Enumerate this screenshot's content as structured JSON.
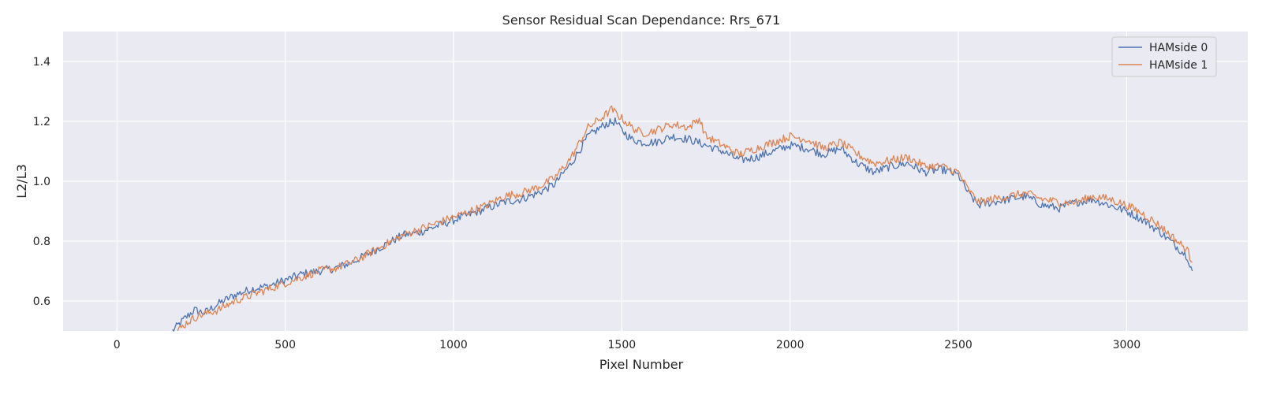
{
  "chart_data": {
    "type": "line",
    "title": "Sensor Residual Scan Dependance: Rrs_671",
    "xlabel": "Pixel Number",
    "ylabel": "L2/L3",
    "xlim": [
      -160,
      3360
    ],
    "ylim": [
      0.5,
      1.5
    ],
    "xticks": [
      0,
      500,
      1000,
      1500,
      2000,
      2500,
      3000
    ],
    "yticks": [
      0.6,
      0.8,
      1.0,
      1.2,
      1.4
    ],
    "grid": true,
    "legend_position": "top-right",
    "background": "#eaeaf2",
    "series": [
      {
        "name": "HAMside 0",
        "color": "#4c72b0",
        "x": [
          165,
          200,
          230,
          260,
          300,
          350,
          400,
          450,
          500,
          550,
          600,
          650,
          700,
          750,
          800,
          850,
          900,
          950,
          1000,
          1050,
          1100,
          1150,
          1200,
          1250,
          1300,
          1350,
          1400,
          1450,
          1480,
          1500,
          1530,
          1560,
          1600,
          1650,
          1700,
          1750,
          1800,
          1850,
          1900,
          1950,
          2000,
          2050,
          2100,
          2150,
          2200,
          2250,
          2300,
          2350,
          2400,
          2450,
          2500,
          2530,
          2560,
          2600,
          2650,
          2700,
          2750,
          2800,
          2850,
          2900,
          2950,
          3000,
          3050,
          3100,
          3150,
          3180,
          3195
        ],
        "y": [
          0.5,
          0.54,
          0.57,
          0.56,
          0.59,
          0.62,
          0.64,
          0.65,
          0.67,
          0.69,
          0.7,
          0.71,
          0.73,
          0.76,
          0.79,
          0.82,
          0.83,
          0.85,
          0.87,
          0.89,
          0.91,
          0.93,
          0.94,
          0.96,
          0.99,
          1.06,
          1.15,
          1.19,
          1.2,
          1.17,
          1.14,
          1.13,
          1.13,
          1.15,
          1.14,
          1.12,
          1.1,
          1.07,
          1.08,
          1.1,
          1.12,
          1.11,
          1.09,
          1.11,
          1.06,
          1.03,
          1.05,
          1.06,
          1.03,
          1.04,
          1.02,
          0.96,
          0.92,
          0.93,
          0.94,
          0.95,
          0.92,
          0.91,
          0.93,
          0.94,
          0.92,
          0.9,
          0.87,
          0.83,
          0.78,
          0.75,
          0.7
        ]
      },
      {
        "name": "HAMside 1",
        "color": "#dd8452",
        "x": [
          180,
          210,
          240,
          270,
          300,
          350,
          400,
          450,
          500,
          550,
          600,
          650,
          700,
          750,
          800,
          850,
          900,
          950,
          1000,
          1050,
          1100,
          1150,
          1200,
          1250,
          1300,
          1350,
          1400,
          1450,
          1470,
          1500,
          1530,
          1560,
          1600,
          1650,
          1700,
          1730,
          1750,
          1800,
          1850,
          1900,
          1950,
          2000,
          2050,
          2100,
          2150,
          2200,
          2250,
          2300,
          2350,
          2400,
          2450,
          2500,
          2530,
          2560,
          2600,
          2650,
          2700,
          2750,
          2800,
          2850,
          2900,
          2950,
          3000,
          3050,
          3100,
          3150,
          3180,
          3195
        ],
        "y": [
          0.5,
          0.53,
          0.55,
          0.56,
          0.57,
          0.6,
          0.62,
          0.64,
          0.66,
          0.68,
          0.7,
          0.71,
          0.73,
          0.76,
          0.79,
          0.82,
          0.84,
          0.86,
          0.88,
          0.9,
          0.92,
          0.95,
          0.96,
          0.98,
          1.01,
          1.08,
          1.18,
          1.22,
          1.24,
          1.21,
          1.18,
          1.16,
          1.17,
          1.19,
          1.18,
          1.21,
          1.15,
          1.12,
          1.09,
          1.11,
          1.13,
          1.15,
          1.14,
          1.11,
          1.13,
          1.09,
          1.06,
          1.07,
          1.08,
          1.05,
          1.05,
          1.03,
          0.97,
          0.93,
          0.94,
          0.95,
          0.96,
          0.94,
          0.93,
          0.93,
          0.95,
          0.94,
          0.92,
          0.89,
          0.85,
          0.8,
          0.77,
          0.73
        ]
      }
    ]
  }
}
